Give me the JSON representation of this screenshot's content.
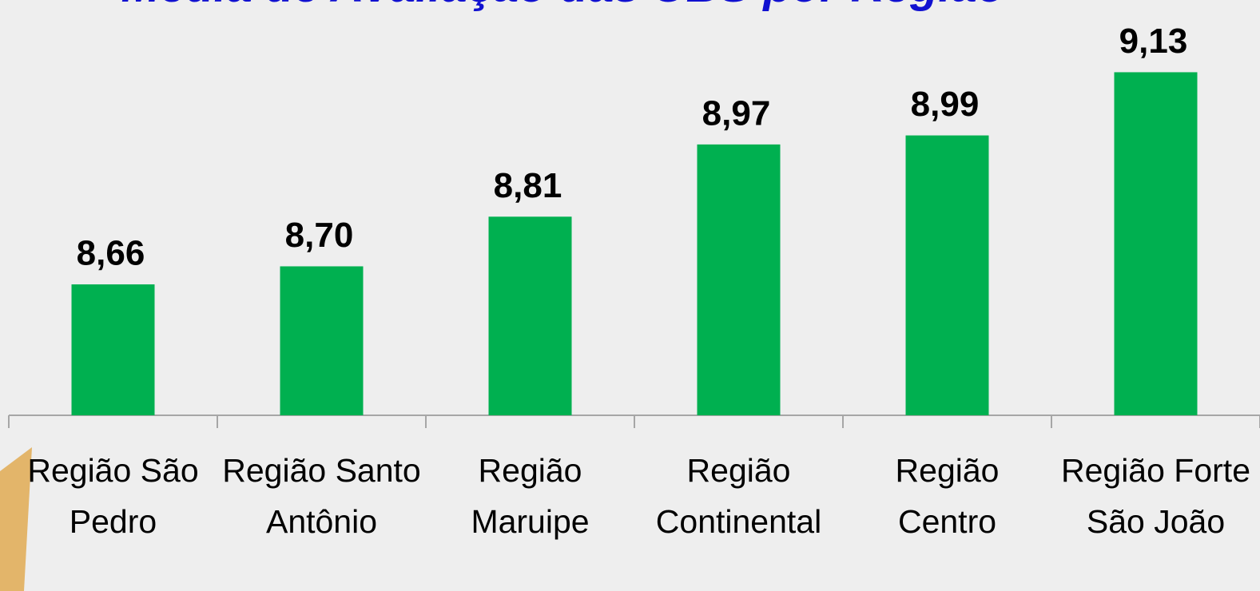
{
  "chart_data": {
    "type": "bar",
    "title": "Média de Avaliação das UBS por Região",
    "categories": [
      "Região São Pedro",
      "Região Santo Antônio",
      "Região Maruipe",
      "Região Continental",
      "Região Centro",
      "Região Forte São João"
    ],
    "values": [
      8.66,
      8.7,
      8.81,
      8.97,
      8.99,
      9.13
    ],
    "value_labels": [
      "8,66",
      "8,70",
      "8,81",
      "8,97",
      "8,99",
      "9,13"
    ],
    "color": "#00b050",
    "ylim": [
      8.37,
      9.29
    ]
  }
}
